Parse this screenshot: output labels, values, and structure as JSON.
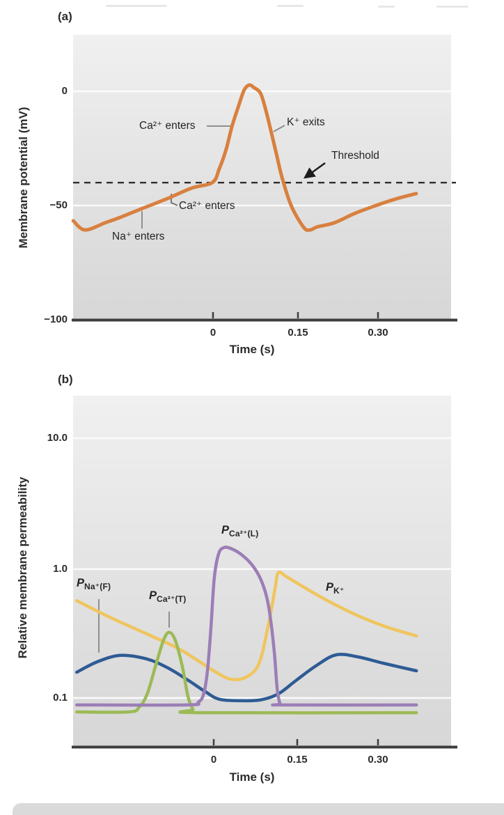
{
  "figure": {
    "panels": [
      {
        "id": "a",
        "label": "(a)",
        "y_title": "Membrane potential (mV)",
        "x_title": "Time (s)",
        "y_ticks": [
          "0",
          "−50",
          "−100"
        ],
        "x_ticks": [
          "0",
          "0.15",
          "0.30"
        ],
        "annotations": {
          "ca_upper": "Ca²⁺ enters",
          "k_exits": "K⁺ exits",
          "threshold": "Threshold",
          "ca_lower": "Ca²⁺ enters",
          "na_enters": "Na⁺ enters"
        }
      },
      {
        "id": "b",
        "label": "(b)",
        "y_title": "Relative membrane permeability",
        "x_title": "Time (s)",
        "y_ticks": [
          "10.0",
          "1.0",
          "0.1"
        ],
        "x_ticks": [
          "0",
          "0.15",
          "0.30"
        ],
        "curve_labels": {
          "pna": {
            "p": "P",
            "sub": "Na⁺(F)"
          },
          "pcat": {
            "p": "P",
            "sub": "Ca²⁺(T)"
          },
          "pcal": {
            "p": "P",
            "sub": "Ca²⁺(L)"
          },
          "pk": {
            "p": "P",
            "sub": "K⁺"
          }
        }
      }
    ]
  },
  "colors": {
    "membrane_orange": "#d8803f",
    "pk_yellow": "#f0c55e",
    "pna_blue": "#2e5b94",
    "pcat_green": "#9cba56",
    "pcal_purple": "#9b7eb6",
    "axis": "#3d3d3d",
    "gridline": "#fbfbfb",
    "threshold_dash": "#2f2f2f",
    "leader_gray": "#8f8f8f"
  },
  "chart_data": [
    {
      "panel": "a",
      "type": "line",
      "title": "Pacemaker action potential",
      "xlabel": "Time (s)",
      "ylabel": "Membrane potential (mV)",
      "xlim": [
        -0.25,
        0.42
      ],
      "ylim": [
        -100,
        25
      ],
      "x_ticks": [
        0,
        0.15,
        0.3
      ],
      "y_ticks": [
        0,
        -50,
        -100
      ],
      "grid": "horizontal white lines at 0 and -50",
      "threshold": {
        "label": "Threshold",
        "value_mV": -40,
        "style": "dashed"
      },
      "annotations": [
        "Ca²⁺ enters",
        "K⁺ exits",
        "Threshold",
        "Ca²⁺ enters",
        "Na⁺ enters"
      ],
      "series": [
        {
          "id": "vm",
          "name": "membrane_potential",
          "color": "#d8803f",
          "x": [
            -0.247,
            -0.226,
            -0.19,
            -0.167,
            -0.13,
            -0.081,
            -0.038,
            -0.001,
            0.011,
            0.023,
            0.034,
            0.046,
            0.055,
            0.064,
            0.073,
            0.084,
            0.093,
            0.103,
            0.113,
            0.122,
            0.138,
            0.16,
            0.171,
            0.185,
            0.214,
            0.25,
            0.288,
            0.325,
            0.359
          ],
          "y": [
            -56.7,
            -60.7,
            -57.5,
            -55.5,
            -51.8,
            -47,
            -42.4,
            -39.9,
            -34,
            -25.6,
            -15,
            -5.8,
            0.5,
            2.7,
            1.5,
            -0.9,
            -8,
            -18,
            -28.5,
            -37.8,
            -50,
            -59.5,
            -60.7,
            -59.3,
            -57.6,
            -53.5,
            -50,
            -47,
            -44.8
          ]
        }
      ]
    },
    {
      "panel": "b",
      "type": "line",
      "title": "Relative membrane permeabilities",
      "xlabel": "Time (s)",
      "ylabel": "Relative membrane permeability",
      "yscale": "log",
      "xlim": [
        -0.25,
        0.37
      ],
      "ylim": [
        0.043,
        22
      ],
      "x_ticks": [
        0,
        0.15,
        0.3
      ],
      "y_ticks": [
        10.0,
        1.0,
        0.1
      ],
      "grid": "horizontal white lines at 10.0, 1.0, 0.1",
      "series": [
        {
          "id": "pna",
          "name": "P_Na+(F)",
          "color": "#2e5b94",
          "x": [
            -0.25,
            -0.212,
            -0.17,
            -0.123,
            -0.085,
            -0.047,
            -0.015,
            0.01,
            0.048,
            0.086,
            0.118,
            0.15,
            0.188,
            0.224,
            0.264,
            0.309,
            0.37
          ],
          "y": [
            0.16,
            0.193,
            0.216,
            0.203,
            0.174,
            0.139,
            0.113,
            0.099,
            0.0965,
            0.098,
            0.109,
            0.138,
            0.181,
            0.218,
            0.21,
            0.188,
            0.164
          ]
        },
        {
          "id": "pk",
          "name": "P_K+",
          "color": "#f0c55e",
          "x": [
            -0.25,
            -0.187,
            -0.114,
            -0.06,
            0,
            0.032,
            0.061,
            0.083,
            0.099,
            0.112,
            0.118,
            0.133,
            0.169,
            0.207,
            0.258,
            0.315,
            0.37
          ],
          "y": [
            0.57,
            0.42,
            0.305,
            0.238,
            0.164,
            0.141,
            0.148,
            0.188,
            0.358,
            0.707,
            0.94,
            0.873,
            0.707,
            0.573,
            0.447,
            0.358,
            0.305
          ]
        },
        {
          "id": "pcat",
          "name": "P_Ca2+(T)",
          "color": "#9cba56",
          "x": [
            -0.25,
            -0.155,
            -0.136,
            -0.121,
            -0.104,
            -0.091,
            -0.081,
            -0.07,
            -0.057,
            -0.047,
            -0.038,
            -0.03,
            0.37
          ],
          "y": [
            0.079,
            0.079,
            0.086,
            0.11,
            0.193,
            0.287,
            0.325,
            0.281,
            0.175,
            0.104,
            0.083,
            0.078,
            0.078
          ]
        },
        {
          "id": "pcal",
          "name": "P_Ca2+(L)",
          "color": "#9b7eb6",
          "x": [
            -0.25,
            -0.05,
            -0.028,
            -0.018,
            -0.011,
            -0.005,
            0.001,
            0.009,
            0.019,
            0.033,
            0.052,
            0.071,
            0.086,
            0.097,
            0.104,
            0.111,
            0.116,
            0.121,
            0.127,
            0.37
          ],
          "y": [
            0.0895,
            0.0895,
            0.094,
            0.11,
            0.17,
            0.358,
            0.851,
            1.313,
            1.468,
            1.432,
            1.281,
            1.064,
            0.83,
            0.602,
            0.405,
            0.218,
            0.117,
            0.092,
            0.0895,
            0.0895
          ]
        }
      ]
    }
  ]
}
